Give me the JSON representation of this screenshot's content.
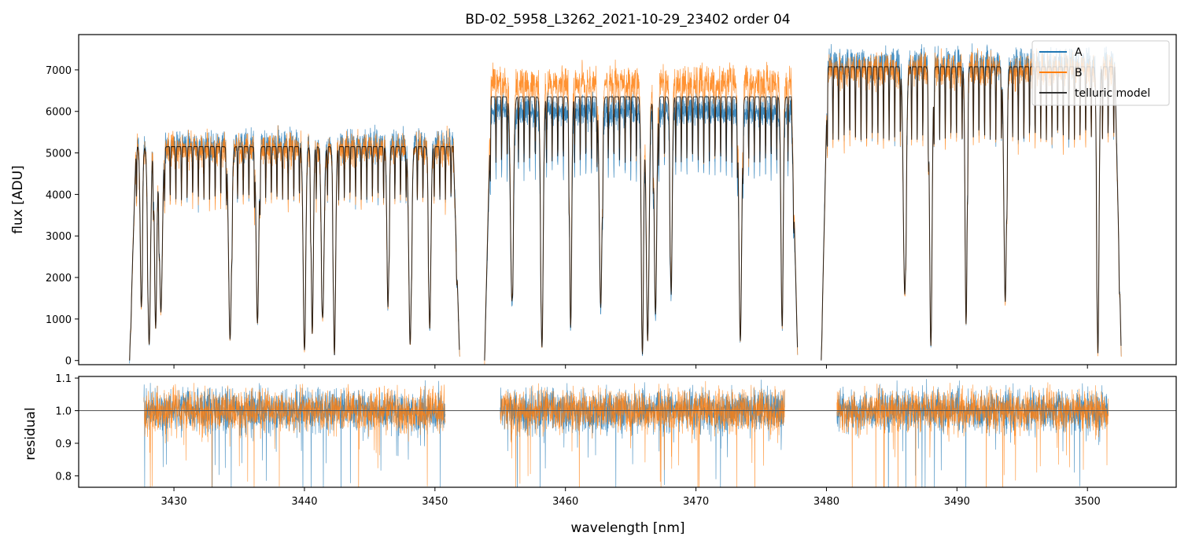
{
  "title": "BD-02_5958_L3262_2021-10-29_23402  order 04",
  "colors": {
    "A": "#1f77b4",
    "B": "#ff7f0e",
    "model": "#000000",
    "refline": "#555555"
  },
  "chart_data": [
    {
      "id": "top",
      "type": "line",
      "ylabel": "flux [ADU]",
      "xlim": [
        3422.7,
        3506.8
      ],
      "ylim": [
        -100,
        7850
      ],
      "yticks": [
        0,
        1000,
        2000,
        3000,
        4000,
        5000,
        6000,
        7000
      ],
      "xticks": [
        3430,
        3440,
        3450,
        3460,
        3470,
        3480,
        3490,
        3500
      ],
      "xtick_labels_shown": false,
      "legend": {
        "position": "top-right",
        "entries": [
          "A",
          "B",
          "telluric model"
        ]
      },
      "segments": [
        {
          "xrange": [
            3426.6,
            3451.9
          ],
          "continuum_A": 5200,
          "continuum_B": 5100
        },
        {
          "xrange": [
            3453.8,
            3477.8
          ],
          "continuum_A": 6000,
          "continuum_B": 6700
        },
        {
          "xrange": [
            3479.6,
            3502.6
          ],
          "continuum_A": 7150,
          "continuum_B": 7000
        }
      ],
      "absorption_lines_nm": [
        3427.5,
        3428.1,
        3428.6,
        3429.0,
        3440.0,
        3440.6,
        3441.4,
        3442.3,
        3434.3,
        3436.4,
        3446.4,
        3448.1,
        3449.6,
        3455.9,
        3458.2,
        3460.4,
        3462.7,
        3465.9,
        3466.3,
        3466.9,
        3468.1,
        3473.4,
        3476.6,
        3486.0,
        3488.0,
        3490.7,
        3493.7,
        3500.8
      ],
      "series": [
        {
          "name": "A"
        },
        {
          "name": "B"
        },
        {
          "name": "telluric model"
        }
      ]
    },
    {
      "id": "bottom",
      "type": "line",
      "xlabel": "wavelength [nm]",
      "ylabel": "residual",
      "xlim": [
        3422.7,
        3506.8
      ],
      "ylim": [
        0.765,
        1.105
      ],
      "yticks": [
        0.8,
        0.9,
        1.0,
        1.1
      ],
      "ytick_labels": [
        "0.8",
        "0.9",
        "1.0",
        "1.1"
      ],
      "xticks": [
        3430,
        3440,
        3450,
        3460,
        3470,
        3480,
        3490,
        3500
      ],
      "reference_line": 1.0,
      "segments": [
        {
          "xrange": [
            3427.7,
            3450.8
          ]
        },
        {
          "xrange": [
            3455.0,
            3476.8
          ]
        },
        {
          "xrange": [
            3480.8,
            3501.6
          ]
        }
      ],
      "series": [
        {
          "name": "A",
          "center": 1.0,
          "noise": 0.04
        },
        {
          "name": "B",
          "center": 1.0,
          "noise": 0.04
        }
      ]
    }
  ]
}
